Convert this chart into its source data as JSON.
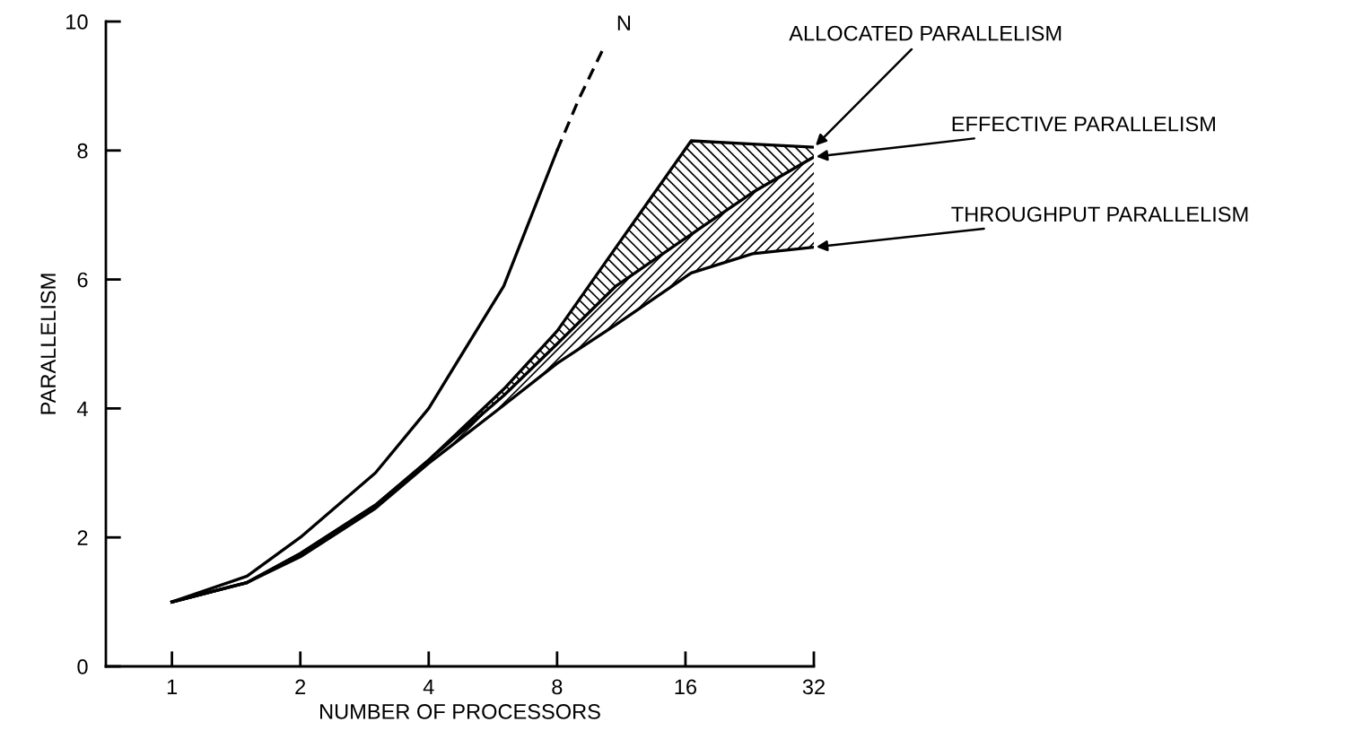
{
  "chart_data": {
    "type": "line",
    "xlabel": "NUMBER OF PROCESSORS",
    "ylabel": "PARALLELISM",
    "log": "x",
    "xlim": [
      0.7,
      32
    ],
    "xticks": [
      1,
      2,
      4,
      8,
      16,
      32
    ],
    "ylim": [
      0,
      10
    ],
    "yticks": [
      0,
      2,
      4,
      6,
      8,
      10
    ],
    "grid": false,
    "marker": "none",
    "series": [
      {
        "color": "#000000",
        "x": [
          1,
          1.5,
          2,
          3,
          4,
          6,
          8
        ],
        "values": [
          1,
          1.4,
          2,
          3,
          4,
          5.9,
          8
        ]
      },
      {
        "name": "N",
        "color": "#000000",
        "line_style": "dashed",
        "x": [
          8,
          9,
          10.3
        ],
        "values": [
          8,
          8.8,
          9.6
        ]
      },
      {
        "name": "ALLOCATED PARALLELISM",
        "color": "#000000",
        "x": [
          1,
          1.5,
          2,
          3,
          4,
          6,
          8,
          11,
          16.5,
          23,
          32
        ],
        "values": [
          1,
          1.3,
          1.75,
          2.5,
          3.2,
          4.3,
          5.2,
          6.5,
          8.15,
          8.1,
          8.05
        ],
        "lower": [
          1,
          1.3,
          1.75,
          2.5,
          3.2,
          4.2,
          5.0,
          5.9,
          6.7,
          7.35,
          7.9
        ],
        "upper": [
          1,
          1.3,
          1.75,
          2.5,
          3.2,
          4.3,
          5.2,
          6.5,
          8.15,
          8.1,
          8.05
        ]
      },
      {
        "name": "EFFECTIVE PARALLELISM",
        "color": "#000000",
        "x": [
          1,
          1.5,
          2,
          3,
          4,
          6,
          8,
          11,
          16.5,
          23,
          32
        ],
        "values": [
          1,
          1.3,
          1.75,
          2.5,
          3.2,
          4.2,
          5.0,
          5.9,
          6.7,
          7.35,
          7.9
        ],
        "lower": [
          1,
          1.3,
          1.7,
          2.45,
          3.15,
          4.05,
          4.7,
          5.3,
          6.1,
          6.4,
          6.5
        ],
        "upper": [
          1,
          1.3,
          1.75,
          2.5,
          3.2,
          4.2,
          5.0,
          5.9,
          6.7,
          7.35,
          7.9
        ]
      },
      {
        "name": "THROUGHPUT PARALLELISM",
        "color": "#000000",
        "x": [
          1,
          1.5,
          2,
          3,
          4,
          6,
          8,
          11,
          16.5,
          23,
          32
        ],
        "values": [
          1,
          1.3,
          1.7,
          2.45,
          3.15,
          4.05,
          4.7,
          5.3,
          6.1,
          6.4,
          6.5
        ]
      }
    ]
  }
}
